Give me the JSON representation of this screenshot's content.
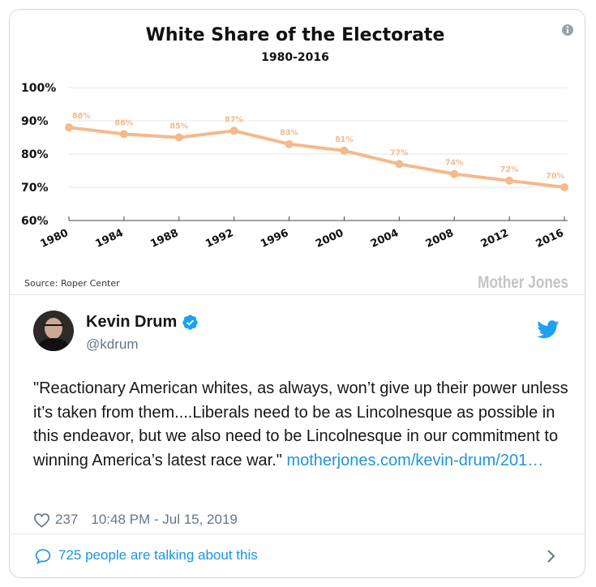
{
  "chart_data": {
    "type": "line",
    "title": "White Share of the Electorate",
    "subtitle": "1980-2016",
    "x": [
      "1980",
      "1984",
      "1988",
      "1992",
      "1996",
      "2000",
      "2004",
      "2008",
      "2012",
      "2016"
    ],
    "values": [
      88,
      86,
      85,
      87,
      83,
      81,
      77,
      74,
      72,
      70
    ],
    "data_labels": [
      "88%",
      "86%",
      "85%",
      "87%",
      "83%",
      "81%",
      "77%",
      "74%",
      "72%",
      "70%"
    ],
    "yticks": [
      60,
      70,
      80,
      90,
      100
    ],
    "ytick_labels": [
      "60%",
      "70%",
      "80%",
      "90%",
      "100%"
    ],
    "ylim": [
      60,
      100
    ],
    "source": "Source: Roper Center",
    "brand": "Mother Jones",
    "line_color": "#f5b98a",
    "grid": true
  },
  "tweet": {
    "display_name": "Kevin Drum",
    "handle": "@kdrum",
    "text": "\"Reactionary American whites, as always, won’t give up their power unless it’s taken from them....Liberals need to be as Lincolnesque as possible in this endeavor, but we also need to be Lincolnesque in our commitment to winning America’s latest race war.\"",
    "link_text": "motherjones.com/kevin-drum/201…",
    "likes": "237",
    "timestamp": "10:48 PM - Jul 15, 2019",
    "talking": "725 people are talking about this"
  },
  "icons": {
    "info": "info-icon",
    "verified": "verified-badge-icon",
    "bird": "twitter-bird-icon",
    "heart": "heart-icon",
    "bubble": "speech-bubble-icon",
    "chevron": "chevron-right-icon"
  },
  "colors": {
    "twitter_blue": "#1b95e0",
    "text": "#14171a",
    "muted": "#657786"
  }
}
